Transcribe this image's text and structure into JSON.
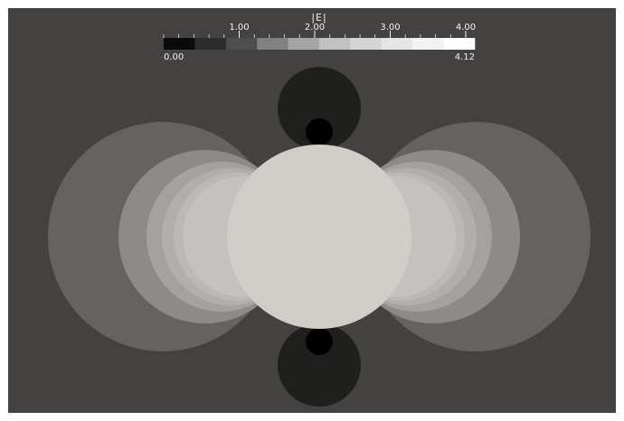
{
  "viewport": {
    "background": "#444240"
  },
  "colorbar": {
    "title": "|E|",
    "min_label": "0.00",
    "max_label": "4.12",
    "range": [
      0,
      4.12
    ],
    "major_ticks": [
      {
        "value": 1.0,
        "label": "1.00"
      },
      {
        "value": 2.0,
        "label": "2.00"
      },
      {
        "value": 3.0,
        "label": "3.00"
      },
      {
        "value": 4.0,
        "label": "4.00"
      }
    ],
    "minor_tick_step": 0.2,
    "bands": [
      "#0a0a0a",
      "#2c2c2c",
      "#4e4e4e",
      "#808080",
      "#a5a5a5",
      "#c1c1c1",
      "#d5d5d5",
      "#e6e6e6",
      "#f3f3f3",
      "#ffffff"
    ]
  },
  "field": {
    "sphere_color": "#d0cec8",
    "lobe_colors": [
      "#656360",
      "#8d8b87",
      "#a4a29e",
      "#b1afab",
      "#bbb9b5",
      "#c4c2be"
    ],
    "pole_lobe_color": "#1f1f1d",
    "pole_core_color": "#000000"
  }
}
